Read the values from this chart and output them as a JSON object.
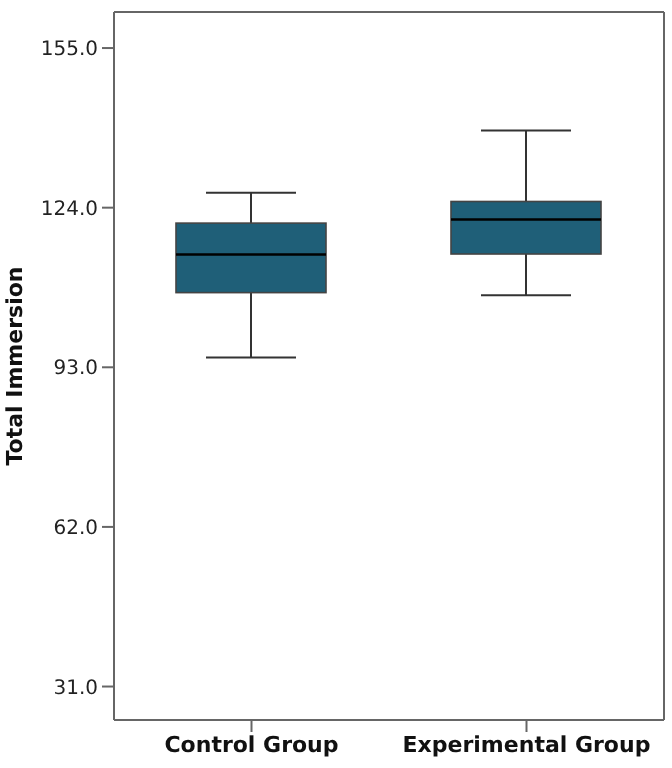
{
  "chart_data": {
    "type": "box",
    "ylabel": "Total Immersion",
    "categories": [
      "Control Group",
      "Experimental Group"
    ],
    "series": [
      {
        "color": "#1f5f78",
        "boxes": [
          {
            "low": 94.9,
            "q1": 107.5,
            "median": 114.9,
            "q3": 121.0,
            "high": 126.9
          },
          {
            "low": 107.0,
            "q1": 115.0,
            "median": 121.7,
            "q3": 125.2,
            "high": 139.0
          }
        ]
      }
    ],
    "ylim": [
      24.5,
      162
    ],
    "yticks": [
      {
        "value": 31,
        "label": "31.0"
      },
      {
        "value": 62,
        "label": "62.0"
      },
      {
        "value": 93,
        "label": "93.0"
      },
      {
        "value": 124,
        "label": "124.0"
      },
      {
        "value": 155,
        "label": "155.0"
      }
    ],
    "grid": false
  }
}
